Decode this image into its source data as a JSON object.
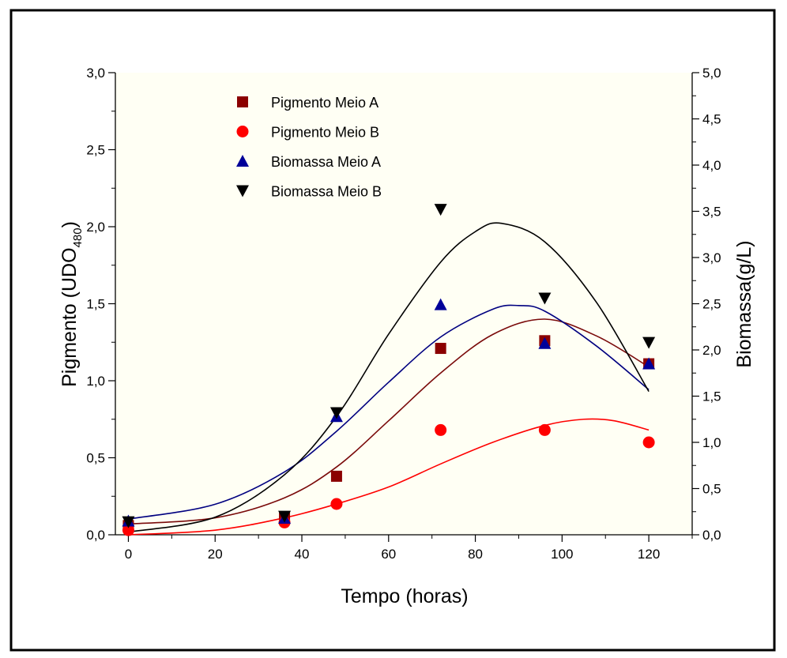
{
  "chart_data": {
    "type": "scatter",
    "xlabel": "Tempo (horas)",
    "ylabel_left": "Pigmento (UDO",
    "ylabel_left_sub": "480",
    "ylabel_left_close": ")",
    "ylabel_right": "Biomassa(g/L)",
    "xlim": [
      -3,
      130
    ],
    "ylim_left": [
      0,
      3.0
    ],
    "ylim_right": [
      0,
      5.0
    ],
    "x_ticks": [
      "0",
      "20",
      "40",
      "60",
      "80",
      "100",
      "120"
    ],
    "y_left_ticks": [
      "0,0",
      "0,5",
      "1,0",
      "1,5",
      "2,0",
      "2,5",
      "3,0"
    ],
    "y_right_ticks": [
      "0,0",
      "0,5",
      "1,0",
      "1,5",
      "2,0",
      "2,5",
      "3,0",
      "3,5",
      "4,0",
      "4,5",
      "5,0"
    ],
    "legend_position": "top-left",
    "series": [
      {
        "name": "Pigmento Meio A",
        "axis": "left",
        "marker": "square",
        "color": "#8b0000",
        "x": [
          0,
          36,
          48,
          72,
          96,
          120
        ],
        "y": [
          0.06,
          0.11,
          0.38,
          1.21,
          1.26,
          1.11
        ],
        "fit_color": "#7a0a0a",
        "fit": [
          [
            0,
            0.07
          ],
          [
            20,
            0.11
          ],
          [
            36,
            0.24
          ],
          [
            48,
            0.44
          ],
          [
            60,
            0.74
          ],
          [
            72,
            1.05
          ],
          [
            84,
            1.3
          ],
          [
            96,
            1.4
          ],
          [
            108,
            1.29
          ],
          [
            120,
            1.09
          ]
        ]
      },
      {
        "name": "Pigmento Meio B",
        "axis": "left",
        "marker": "circle",
        "color": "#ff0000",
        "x": [
          0,
          36,
          48,
          72,
          96,
          120
        ],
        "y": [
          0.03,
          0.08,
          0.2,
          0.68,
          0.68,
          0.6
        ],
        "fit_color": "#ff0000",
        "fit": [
          [
            0,
            0.0
          ],
          [
            20,
            0.03
          ],
          [
            36,
            0.11
          ],
          [
            48,
            0.2
          ],
          [
            60,
            0.31
          ],
          [
            72,
            0.46
          ],
          [
            84,
            0.6
          ],
          [
            96,
            0.71
          ],
          [
            105,
            0.75
          ],
          [
            112,
            0.74
          ],
          [
            120,
            0.68
          ]
        ]
      },
      {
        "name": "Biomassa Meio A",
        "axis": "right",
        "marker": "triangle-up",
        "color": "#000099",
        "x": [
          0,
          36,
          48,
          72,
          96,
          120
        ],
        "y": [
          0.15,
          0.18,
          1.28,
          2.49,
          2.07,
          1.85
        ],
        "fit_color": "#000080",
        "fit": [
          [
            0,
            0.17
          ],
          [
            20,
            0.33
          ],
          [
            36,
            0.68
          ],
          [
            48,
            1.12
          ],
          [
            60,
            1.65
          ],
          [
            72,
            2.14
          ],
          [
            84,
            2.44
          ],
          [
            90,
            2.48
          ],
          [
            96,
            2.42
          ],
          [
            108,
            2.04
          ],
          [
            120,
            1.57
          ]
        ]
      },
      {
        "name": "Biomassa Meio B",
        "axis": "right",
        "marker": "triangle-down",
        "color": "#000000",
        "x": [
          0,
          36,
          48,
          72,
          96,
          120
        ],
        "y": [
          0.14,
          0.2,
          1.32,
          3.52,
          2.56,
          2.08
        ],
        "fit_color": "#000000",
        "fit": [
          [
            0,
            0.03
          ],
          [
            20,
            0.19
          ],
          [
            36,
            0.65
          ],
          [
            48,
            1.28
          ],
          [
            60,
            2.17
          ],
          [
            72,
            2.95
          ],
          [
            80,
            3.28
          ],
          [
            86,
            3.37
          ],
          [
            96,
            3.17
          ],
          [
            108,
            2.51
          ],
          [
            120,
            1.55
          ]
        ]
      }
    ]
  }
}
